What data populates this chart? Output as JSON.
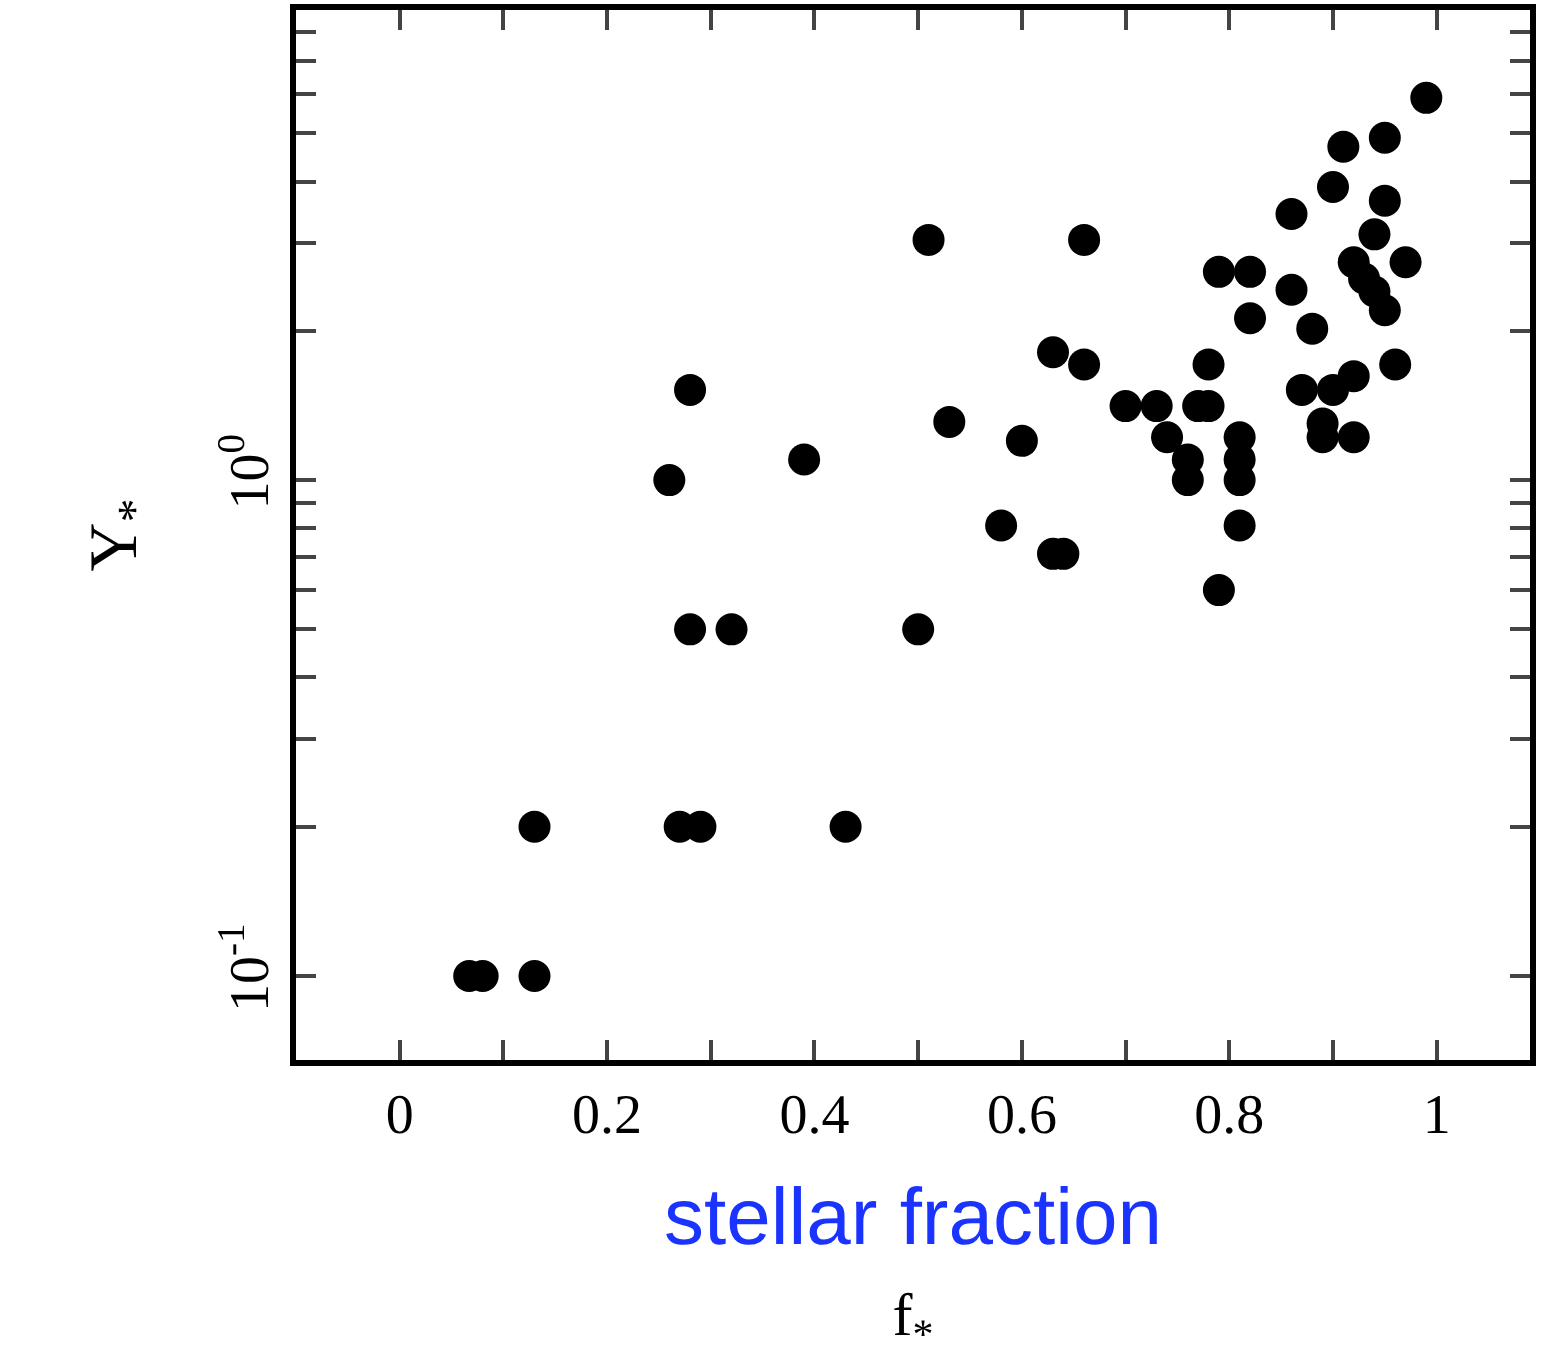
{
  "chart_data": {
    "type": "scatter",
    "xlabel": "f$_{*}$",
    "ylabel": "Υ$_{*}$",
    "annotations": [
      "stellar fraction"
    ],
    "log": "y",
    "marker": "circle",
    "xlim": [
      -0.1,
      1.09
    ],
    "ylim": [
      0.0677,
      8.87
    ],
    "xticks": [
      0,
      {
        "value": 0.1,
        "label": null
      },
      {
        "value": 0.2,
        "label": "0.2"
      },
      {
        "value": 0.3,
        "label": null
      },
      {
        "value": 0.4,
        "label": "0.4"
      },
      {
        "value": 0.5,
        "label": null
      },
      {
        "value": 0.6,
        "label": "0.6"
      },
      {
        "value": 0.7,
        "label": null
      },
      {
        "value": 0.8,
        "label": "0.8"
      },
      {
        "value": 0.9,
        "label": null
      },
      1
    ],
    "yticks": [
      {
        "value": 0.1,
        "label": "10$^{-1}$"
      },
      {
        "value": 0.2,
        "label": null
      },
      {
        "value": 0.3,
        "label": null
      },
      {
        "value": 0.4,
        "label": null
      },
      {
        "value": 0.5,
        "label": null
      },
      {
        "value": 0.6,
        "label": null
      },
      {
        "value": 0.7,
        "label": null
      },
      {
        "value": 0.8,
        "label": null
      },
      {
        "value": 0.9,
        "label": null
      },
      {
        "value": 1,
        "label": "10$^{0}$"
      },
      {
        "value": 2,
        "label": null
      },
      {
        "value": 3,
        "label": null
      },
      {
        "value": 4,
        "label": null
      },
      {
        "value": 5,
        "label": null
      },
      {
        "value": 6,
        "label": null
      },
      {
        "value": 7,
        "label": null
      },
      {
        "value": 8,
        "label": null
      }
    ],
    "series": [
      {
        "color": "#000000",
        "x": [
          0.067,
          0.08,
          0.13,
          0.13,
          0.27,
          0.29,
          0.43,
          0.28,
          0.32,
          0.5,
          0.26,
          0.28,
          0.39,
          0.51,
          0.53,
          0.6,
          0.58,
          0.63,
          0.64,
          0.66,
          0.63,
          0.66,
          0.7,
          0.73,
          0.74,
          0.76,
          0.76,
          0.77,
          0.78,
          0.78,
          0.79,
          0.79,
          0.81,
          0.81,
          0.81,
          0.81,
          0.82,
          0.82,
          0.86,
          0.86,
          0.87,
          0.88,
          0.89,
          0.89,
          0.9,
          0.9,
          0.91,
          0.92,
          0.92,
          0.92,
          0.93,
          0.94,
          0.94,
          0.95,
          0.95,
          0.95,
          0.96,
          0.97,
          0.99
        ],
        "values": [
          0.1,
          0.1,
          0.1,
          0.2,
          0.2,
          0.2,
          0.2,
          0.5,
          0.5,
          0.5,
          1.0,
          1.52,
          1.1,
          3.05,
          1.31,
          1.2,
          0.81,
          0.71,
          0.71,
          3.05,
          1.81,
          1.71,
          1.41,
          1.41,
          1.22,
          1.1,
          1.0,
          1.41,
          1.41,
          1.71,
          2.63,
          0.6,
          1.22,
          1.1,
          1.0,
          0.81,
          2.63,
          2.12,
          2.42,
          3.44,
          1.52,
          2.02,
          1.3,
          1.22,
          1.52,
          3.9,
          4.7,
          2.75,
          1.62,
          1.22,
          2.55,
          2.4,
          3.13,
          2.2,
          4.9,
          3.66,
          1.71,
          2.75,
          5.9
        ]
      }
    ]
  }
}
